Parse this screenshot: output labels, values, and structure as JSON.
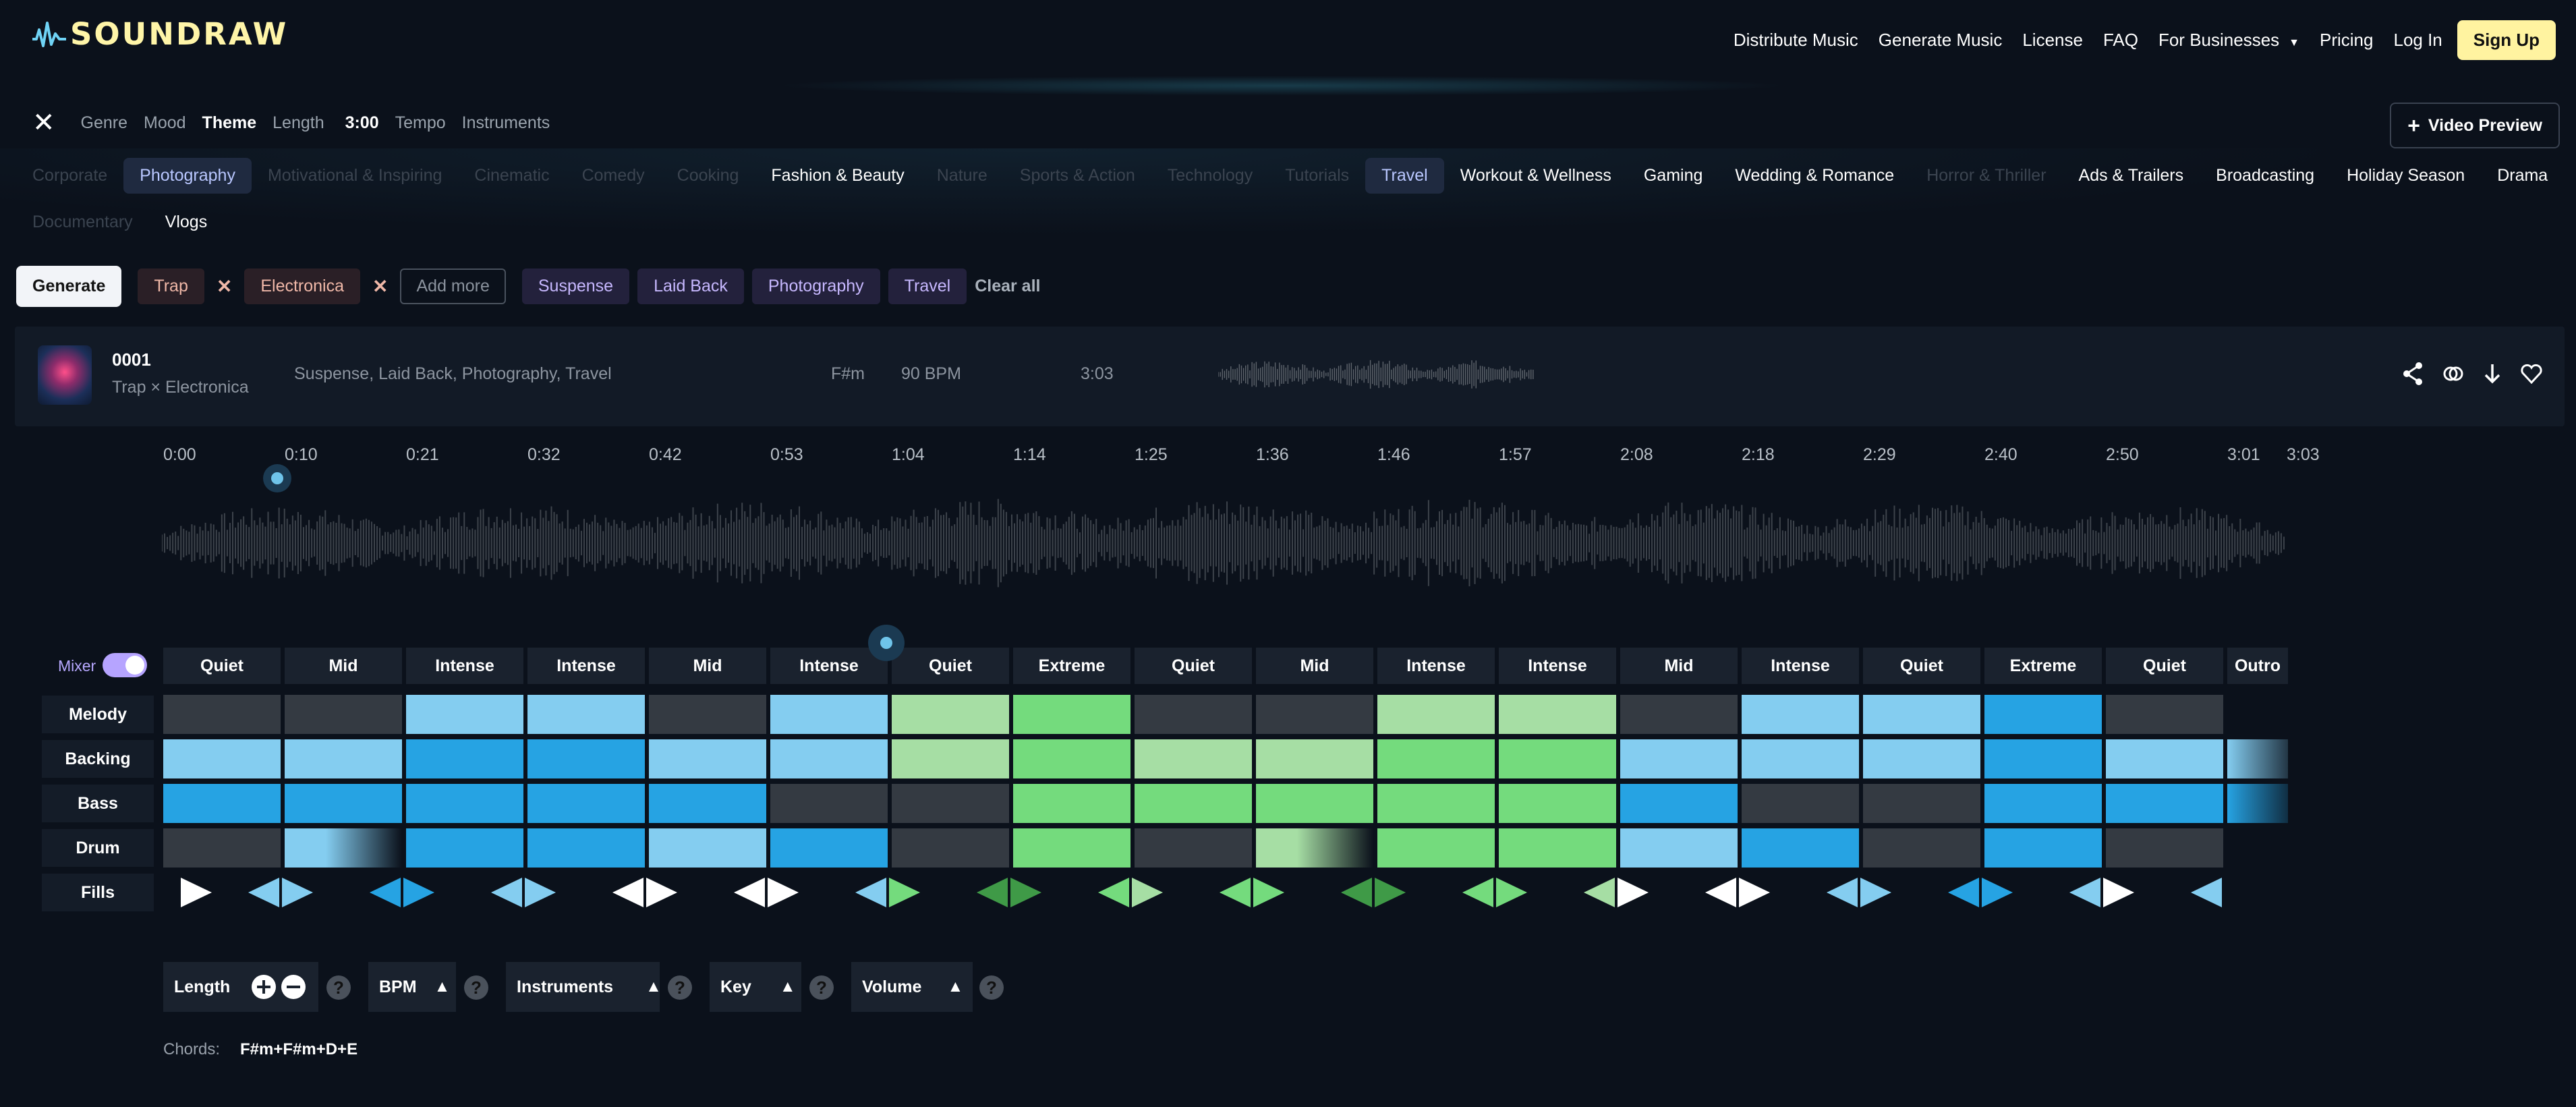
{
  "header": {
    "logo_text": "SOUNDRAW",
    "nav": [
      "Distribute Music",
      "Generate Music",
      "License",
      "FAQ",
      "For Businesses",
      "Pricing",
      "Log In"
    ],
    "signup": "Sign Up"
  },
  "filters": {
    "tabs": [
      "Genre",
      "Mood",
      "Theme"
    ],
    "length_label": "Length",
    "length_value": "3:00",
    "tabs2": [
      "Tempo",
      "Instruments"
    ],
    "video_preview": "Video Preview"
  },
  "themes": [
    {
      "label": "Corporate",
      "state": "off"
    },
    {
      "label": "Photography",
      "state": "selected"
    },
    {
      "label": "Motivational & Inspiring",
      "state": "off"
    },
    {
      "label": "Cinematic",
      "state": "off"
    },
    {
      "label": "Comedy",
      "state": "off"
    },
    {
      "label": "Cooking",
      "state": "off"
    },
    {
      "label": "Fashion & Beauty",
      "state": "on"
    },
    {
      "label": "Nature",
      "state": "off"
    },
    {
      "label": "Sports & Action",
      "state": "off"
    },
    {
      "label": "Technology",
      "state": "off"
    },
    {
      "label": "Tutorials",
      "state": "off"
    },
    {
      "label": "Travel",
      "state": "selected"
    },
    {
      "label": "Workout & Wellness",
      "state": "on"
    },
    {
      "label": "Gaming",
      "state": "on"
    },
    {
      "label": "Wedding & Romance",
      "state": "on"
    },
    {
      "label": "Horror & Thriller",
      "state": "off"
    },
    {
      "label": "Ads & Trailers",
      "state": "on"
    },
    {
      "label": "Broadcasting",
      "state": "on"
    },
    {
      "label": "Holiday Season",
      "state": "on"
    },
    {
      "label": "Drama",
      "state": "on"
    },
    {
      "label": "Documentary",
      "state": "off"
    },
    {
      "label": "Vlogs",
      "state": "on"
    }
  ],
  "tagbar": {
    "generate": "Generate",
    "genres": [
      "Trap",
      "Electronica"
    ],
    "add_more": "Add more",
    "attributes": [
      "Suspense",
      "Laid Back",
      "Photography",
      "Travel"
    ],
    "clear_all": "Clear all"
  },
  "track": {
    "title": "0001",
    "genre": "Trap × Electronica",
    "tags": "Suspense, Laid Back, Photography, Travel",
    "key": "F#m",
    "bpm": "90 BPM",
    "duration": "3:03"
  },
  "timeline": [
    "0:00",
    "0:10",
    "0:21",
    "0:32",
    "0:42",
    "0:53",
    "1:04",
    "1:14",
    "1:25",
    "1:36",
    "1:46",
    "1:57",
    "2:08",
    "2:18",
    "2:29",
    "2:40",
    "2:50",
    "3:01",
    "3:03"
  ],
  "mixer": {
    "label": "Mixer",
    "enabled": true,
    "sections": [
      "Quiet",
      "Mid",
      "Intense",
      "Intense",
      "Mid",
      "Intense",
      "Quiet",
      "Extreme",
      "Quiet",
      "Mid",
      "Intense",
      "Intense",
      "Mid",
      "Intense",
      "Quiet",
      "Extreme",
      "Quiet",
      "Outro"
    ],
    "rows": [
      {
        "label": "Melody",
        "cells": [
          "dark",
          "dark",
          "lb",
          "lb",
          "dark",
          "lb",
          "lg",
          "g",
          "dark",
          "dark",
          "lg",
          "lg",
          "dark",
          "lb",
          "lb",
          "b",
          "dark"
        ]
      },
      {
        "label": "Backing",
        "cells": [
          "lb",
          "lb",
          "b",
          "b",
          "lb",
          "lb",
          "lg",
          "g",
          "lg",
          "lg",
          "g",
          "g",
          "lb",
          "lb",
          "lb",
          "b",
          "lb",
          "out1"
        ]
      },
      {
        "label": "Bass",
        "cells": [
          "b",
          "b",
          "b",
          "b",
          "b",
          "dark",
          "dark",
          "g",
          "g",
          "g",
          "g",
          "g",
          "b",
          "dark",
          "dark",
          "b",
          "b",
          "out2"
        ]
      },
      {
        "label": "Drum",
        "cells": [
          "dark",
          "fadeb",
          "b",
          "b",
          "lb",
          "b",
          "dark",
          "g",
          "dark",
          "fadeg",
          "g",
          "g",
          "lb",
          "b",
          "dark",
          "b",
          "dark"
        ]
      }
    ],
    "fills_label": "Fills",
    "fills": [
      [
        "",
        "white"
      ],
      [
        "lb",
        "lb"
      ],
      [
        "b",
        "b"
      ],
      [
        "lb",
        "lb"
      ],
      [
        "white",
        "white"
      ],
      [
        "white",
        "white"
      ],
      [
        "lb",
        "g"
      ],
      [
        "dg",
        "dg"
      ],
      [
        "g",
        "lg"
      ],
      [
        "g",
        "g"
      ],
      [
        "dg",
        "dg"
      ],
      [
        "g",
        "g"
      ],
      [
        "lg",
        "white"
      ],
      [
        "white",
        "white"
      ],
      [
        "lb",
        "lb"
      ],
      [
        "b",
        "b"
      ],
      [
        "lb",
        "white"
      ],
      [
        "lb",
        ""
      ]
    ],
    "fill_colors": {
      "white": "#ffffff",
      "lb": "#84cdf0",
      "b": "#26a3e3",
      "lg": "#a6dea4",
      "g": "#74db7d",
      "dg": "#3f9a47"
    }
  },
  "controls": {
    "length": "Length",
    "bpm": "BPM",
    "instruments": "Instruments",
    "key": "Key",
    "volume": "Volume",
    "help": "?"
  },
  "chords": {
    "label": "Chords:",
    "value": "F#m+F#m+D+E"
  },
  "colors": {
    "background": "#0b111b",
    "accent_yellow": "#fff3a0",
    "mixer_purple": "#b6a4ff"
  }
}
